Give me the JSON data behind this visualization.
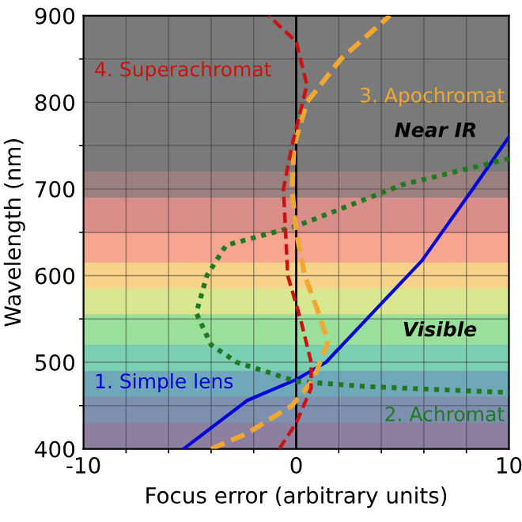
{
  "chart_data": {
    "type": "line",
    "xlabel": "Focus error (arbitrary units)",
    "ylabel": "Wavelength (nm)",
    "xlim": [
      -10,
      10
    ],
    "ylim": [
      400,
      900
    ],
    "xticks": [
      -10,
      0,
      10
    ],
    "yticks": [
      400,
      500,
      600,
      700,
      800,
      900
    ],
    "grid": true,
    "legend": false,
    "series": [
      {
        "name": "1. Simple lens",
        "color": "#0000dd",
        "line_style": "solid",
        "x": [
          -5.3,
          -2.3,
          0,
          1.4,
          3.7,
          5.9,
          8.3,
          10
        ],
        "values": [
          400,
          456,
          480,
          500,
          560,
          617,
          700,
          760
        ]
      },
      {
        "name": "2. Achromat",
        "color": "#1f7a1f",
        "line_style": "dotted",
        "x": [
          10,
          5,
          0,
          -3.3,
          -4.2,
          -4.7,
          -4.0,
          -2.8,
          0,
          3.3,
          10
        ],
        "values": [
          735,
          705,
          657,
          635,
          600,
          557,
          520,
          500,
          478,
          472,
          465
        ]
      },
      {
        "name": "3. Apochromat",
        "color": "#f0a830",
        "line_style": "dashed",
        "x": [
          -4.0,
          -2.3,
          -0.2,
          0.8,
          1.5,
          1.0,
          0.4,
          0.0,
          -0.2,
          -0.1,
          0.5,
          2.1,
          4.4
        ],
        "values": [
          400,
          418,
          450,
          480,
          524,
          560,
          600,
          650,
          700,
          750,
          800,
          850,
          900
        ]
      },
      {
        "name": "4. Superachromat",
        "color": "#cc1111",
        "line_style": "dashed",
        "x": [
          -0.8,
          0,
          0.7,
          0.7,
          0.2,
          -0.4,
          -0.5,
          -0.6,
          -0.2,
          0.5,
          0,
          -1.3
        ],
        "values": [
          400,
          430,
          470,
          500,
          550,
          600,
          650,
          700,
          750,
          820,
          870,
          900
        ]
      }
    ],
    "ref_lines": [
      {
        "axis": "x",
        "value": 0,
        "color": "#000000",
        "line_style": "solid"
      }
    ],
    "annotations": [
      "Near IR",
      "Visible"
    ]
  }
}
